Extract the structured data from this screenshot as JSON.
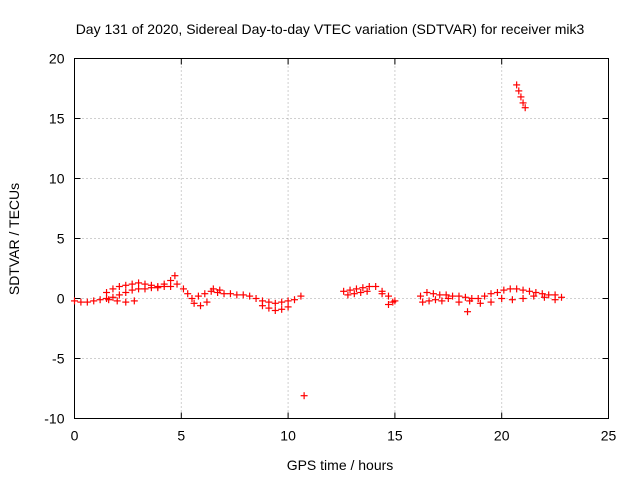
{
  "chart_data": {
    "type": "scatter",
    "title": "Day 131 of 2020, Sidereal Day-to-day VTEC variation (SDTVAR) for receiver mik3",
    "xlabel": "GPS time / hours",
    "ylabel": "SDTVAR / TECUs",
    "xlim": [
      0,
      25
    ],
    "ylim": [
      -10,
      20
    ],
    "xticks": [
      0,
      5,
      10,
      15,
      20,
      25
    ],
    "yticks": [
      -10,
      -5,
      0,
      5,
      10,
      15,
      20
    ],
    "xtick_labels": [
      "0",
      "5",
      "10",
      "15",
      "20",
      "25"
    ],
    "ytick_labels": [
      "-10",
      "-5",
      "0",
      "5",
      "10",
      "15",
      "20"
    ],
    "grid": true,
    "marker": "+",
    "color": "#ff0000",
    "series": [
      {
        "name": "SDTVAR",
        "segments": [
          {
            "x": [
              0.0,
              0.3,
              0.6,
              0.9,
              1.2,
              1.5,
              1.8,
              2.1,
              2.4,
              2.7,
              3.0,
              3.3,
              3.6,
              3.9,
              4.2,
              4.5,
              4.8,
              5.1,
              5.3
            ],
            "y": [
              -0.2,
              -0.3,
              -0.3,
              -0.2,
              -0.1,
              0.0,
              0.1,
              0.3,
              0.5,
              0.7,
              0.8,
              0.8,
              0.9,
              0.9,
              1.0,
              1.0,
              1.2,
              0.8,
              0.4
            ]
          },
          {
            "x": [
              1.5,
              1.8,
              2.1,
              2.4,
              2.7,
              3.0,
              3.3,
              3.6,
              3.9,
              4.2,
              4.5,
              4.7
            ],
            "y": [
              0.5,
              0.8,
              1.0,
              1.1,
              1.2,
              1.3,
              1.2,
              1.1,
              1.0,
              1.2,
              1.5,
              1.9
            ]
          },
          {
            "x": [
              1.6,
              2.0,
              2.4,
              2.8
            ],
            "y": [
              -0.1,
              -0.2,
              -0.3,
              -0.2
            ]
          },
          {
            "x": [
              5.5,
              5.8,
              6.1,
              6.4,
              6.7,
              7.0,
              7.3,
              7.6,
              7.9,
              8.2,
              8.5,
              8.8,
              9.1,
              9.4,
              9.7,
              10.0,
              10.3,
              10.6
            ],
            "y": [
              0.0,
              0.2,
              0.4,
              0.6,
              0.5,
              0.4,
              0.4,
              0.3,
              0.3,
              0.2,
              0.0,
              -0.2,
              -0.3,
              -0.4,
              -0.3,
              -0.2,
              -0.1,
              0.2
            ]
          },
          {
            "x": [
              5.6,
              5.9,
              6.2,
              6.5,
              6.8
            ],
            "y": [
              -0.4,
              -0.6,
              -0.3,
              0.8,
              0.7
            ]
          },
          {
            "x": [
              8.8,
              9.1,
              9.4,
              9.7,
              10.0
            ],
            "y": [
              -0.6,
              -0.8,
              -1.0,
              -0.9,
              -0.7
            ]
          },
          {
            "x": [
              10.75
            ],
            "y": [
              -8.1
            ]
          },
          {
            "x": [
              12.6,
              12.9,
              13.2,
              13.5,
              13.8,
              14.1,
              14.4,
              14.7,
              15.0
            ],
            "y": [
              0.6,
              0.7,
              0.8,
              0.9,
              1.0,
              1.0,
              0.6,
              0.2,
              -0.2
            ]
          },
          {
            "x": [
              12.8,
              13.1,
              13.4,
              13.7
            ],
            "y": [
              0.3,
              0.4,
              0.5,
              0.6
            ]
          },
          {
            "x": [
              14.4,
              14.7,
              14.9
            ],
            "y": [
              0.4,
              -0.5,
              -0.3
            ]
          },
          {
            "x": [
              16.2,
              16.5,
              16.8,
              17.1,
              17.4,
              17.7,
              18.0,
              18.3,
              18.6,
              18.9,
              19.2,
              19.5,
              19.8,
              20.1,
              20.4,
              20.7,
              21.0,
              21.3,
              21.6,
              21.9,
              22.2,
              22.5,
              22.8
            ],
            "y": [
              0.2,
              0.5,
              0.4,
              0.3,
              0.3,
              0.2,
              0.2,
              0.1,
              0.0,
              0.0,
              0.2,
              0.4,
              0.5,
              0.7,
              0.8,
              0.8,
              0.7,
              0.6,
              0.5,
              0.4,
              0.3,
              0.3,
              0.1
            ]
          },
          {
            "x": [
              16.3,
              16.6,
              16.9,
              17.2,
              17.5,
              18.0,
              18.5,
              19.0,
              19.5,
              20.0,
              20.5,
              21.0,
              21.5,
              22.0,
              22.5
            ],
            "y": [
              -0.3,
              -0.2,
              -0.1,
              -0.2,
              0.0,
              -0.3,
              -0.2,
              -0.4,
              -0.3,
              0.0,
              -0.1,
              0.0,
              0.2,
              0.1,
              -0.1
            ]
          },
          {
            "x": [
              18.4
            ],
            "y": [
              -1.1
            ]
          },
          {
            "x": [
              20.7,
              20.8,
              20.9,
              21.0,
              21.1
            ],
            "y": [
              17.8,
              17.3,
              16.8,
              16.3,
              15.9
            ]
          }
        ]
      }
    ]
  }
}
